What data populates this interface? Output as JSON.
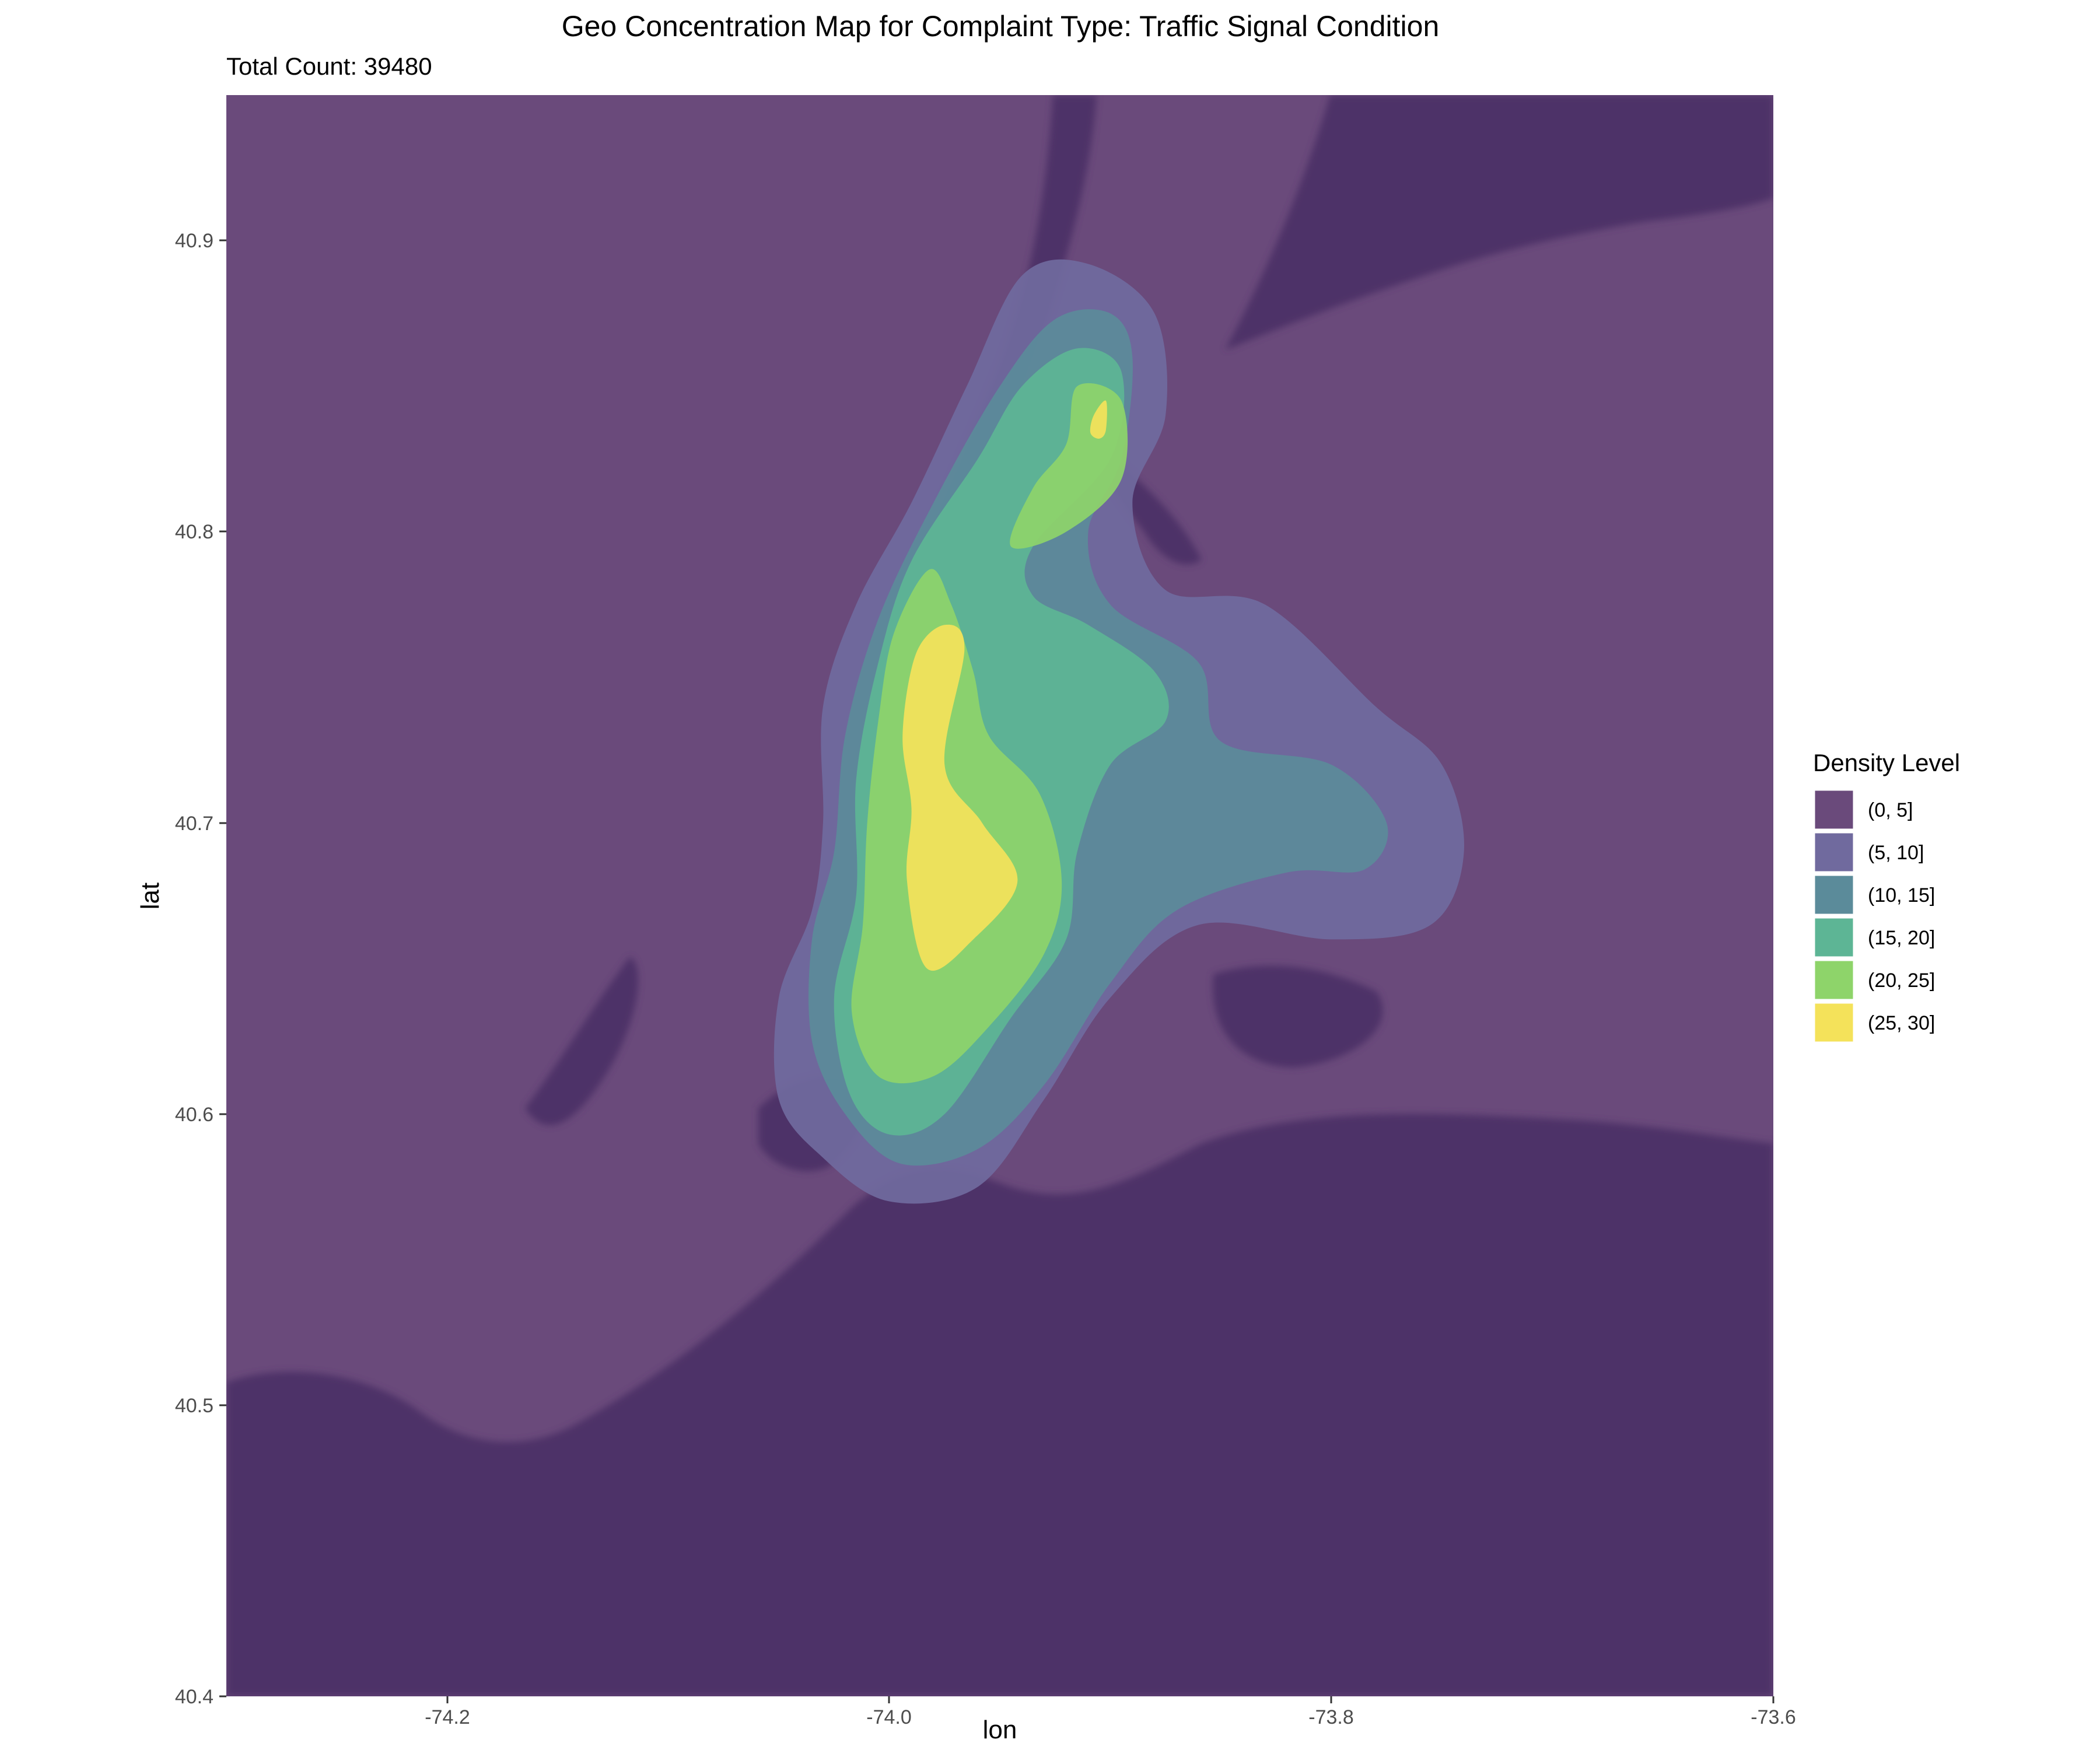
{
  "chart_data": {
    "type": "heatmap",
    "title": "Geo Concentration Map for Complaint Type: Traffic Signal Condition",
    "subtitle": "Total Count: 39480",
    "xlabel": "lon",
    "ylabel": "lat",
    "xlim": [
      -74.3,
      -73.6
    ],
    "ylim": [
      40.4,
      40.95
    ],
    "x_ticks": [
      -74.2,
      -74.0,
      -73.8,
      -73.6
    ],
    "x_tick_labels": [
      "-74.2",
      "-74.0",
      "-73.8",
      "-73.6"
    ],
    "y_ticks": [
      40.4,
      40.5,
      40.6,
      40.7,
      40.8,
      40.9
    ],
    "y_tick_labels": [
      "40.4",
      "40.5",
      "40.6",
      "40.7",
      "40.8",
      "40.9"
    ],
    "grid": false,
    "legend_position": "right",
    "legend": {
      "title": "Density Level",
      "levels": [
        {
          "label": "(0, 5]",
          "color": "#6a4a7b"
        },
        {
          "label": "(5, 10]",
          "color": "#706a9e"
        },
        {
          "label": "(10, 15]",
          "color": "#5b8b9a"
        },
        {
          "label": "(15, 20]",
          "color": "#5db595"
        },
        {
          "label": "(20, 25]",
          "color": "#8ed46a"
        },
        {
          "label": "(25, 30]",
          "color": "#f4e25a"
        }
      ]
    },
    "background_colors": {
      "land": "#6a4a7b",
      "water": "#4e3368"
    },
    "contours": [
      {
        "level": "(5, 10]",
        "points": [
          [
            -73.94,
            40.888
          ],
          [
            -73.91,
            40.892
          ],
          [
            -73.88,
            40.875
          ],
          [
            -73.875,
            40.84
          ],
          [
            -73.89,
            40.81
          ],
          [
            -73.875,
            40.78
          ],
          [
            -73.83,
            40.775
          ],
          [
            -73.78,
            40.74
          ],
          [
            -73.75,
            40.72
          ],
          [
            -73.74,
            40.69
          ],
          [
            -73.755,
            40.665
          ],
          [
            -73.8,
            40.66
          ],
          [
            -73.86,
            40.665
          ],
          [
            -73.9,
            40.64
          ],
          [
            -73.93,
            40.605
          ],
          [
            -73.96,
            40.575
          ],
          [
            -74.0,
            40.57
          ],
          [
            -74.03,
            40.585
          ],
          [
            -74.05,
            40.605
          ],
          [
            -74.05,
            40.64
          ],
          [
            -74.035,
            40.67
          ],
          [
            -74.03,
            40.7
          ],
          [
            -74.03,
            40.74
          ],
          [
            -74.015,
            40.775
          ],
          [
            -73.99,
            40.81
          ],
          [
            -73.965,
            40.85
          ]
        ]
      },
      {
        "level": "(10, 15]",
        "points": [
          [
            -73.925,
            40.873
          ],
          [
            -73.9,
            40.875
          ],
          [
            -73.89,
            40.86
          ],
          [
            -73.895,
            40.825
          ],
          [
            -73.91,
            40.8
          ],
          [
            -73.9,
            40.775
          ],
          [
            -73.86,
            40.755
          ],
          [
            -73.85,
            40.728
          ],
          [
            -73.8,
            40.72
          ],
          [
            -73.775,
            40.7
          ],
          [
            -73.785,
            40.684
          ],
          [
            -73.82,
            40.683
          ],
          [
            -73.87,
            40.67
          ],
          [
            -73.9,
            40.645
          ],
          [
            -73.93,
            40.61
          ],
          [
            -73.96,
            40.588
          ],
          [
            -73.995,
            40.583
          ],
          [
            -74.02,
            40.6
          ],
          [
            -74.035,
            40.625
          ],
          [
            -74.035,
            40.66
          ],
          [
            -74.025,
            40.69
          ],
          [
            -74.02,
            40.73
          ],
          [
            -74.005,
            40.77
          ],
          [
            -73.98,
            40.81
          ],
          [
            -73.95,
            40.85
          ]
        ]
      },
      {
        "level": "(15, 20]",
        "points": [
          [
            -73.915,
            40.863
          ],
          [
            -73.895,
            40.855
          ],
          [
            -73.9,
            40.825
          ],
          [
            -73.935,
            40.795
          ],
          [
            -73.935,
            40.778
          ],
          [
            -73.91,
            40.768
          ],
          [
            -73.88,
            40.752
          ],
          [
            -73.875,
            40.735
          ],
          [
            -73.9,
            40.72
          ],
          [
            -73.915,
            40.69
          ],
          [
            -73.92,
            40.66
          ],
          [
            -73.945,
            40.633
          ],
          [
            -73.975,
            40.6
          ],
          [
            -74.0,
            40.593
          ],
          [
            -74.018,
            40.607
          ],
          [
            -74.025,
            40.64
          ],
          [
            -74.015,
            40.675
          ],
          [
            -74.015,
            40.715
          ],
          [
            -74.005,
            40.755
          ],
          [
            -73.99,
            40.79
          ],
          [
            -73.96,
            40.825
          ],
          [
            -73.94,
            40.85
          ]
        ]
      },
      {
        "level": "(20, 25]",
        "points": [
          [
            -73.915,
            40.85
          ],
          [
            -73.895,
            40.845
          ],
          [
            -73.895,
            40.818
          ],
          [
            -73.92,
            40.8
          ],
          [
            -73.945,
            40.795
          ],
          [
            -73.935,
            40.815
          ],
          [
            -73.92,
            40.83
          ]
        ]
      },
      {
        "level": "(20, 25]",
        "points": [
          [
            -73.982,
            40.787
          ],
          [
            -73.972,
            40.775
          ],
          [
            -73.962,
            40.752
          ],
          [
            -73.955,
            40.73
          ],
          [
            -73.932,
            40.71
          ],
          [
            -73.922,
            40.68
          ],
          [
            -73.93,
            40.655
          ],
          [
            -73.955,
            40.63
          ],
          [
            -73.98,
            40.613
          ],
          [
            -74.005,
            40.613
          ],
          [
            -74.017,
            40.635
          ],
          [
            -74.012,
            40.665
          ],
          [
            -74.01,
            40.7
          ],
          [
            -74.005,
            40.735
          ],
          [
            -73.998,
            40.765
          ]
        ]
      },
      {
        "level": "(25, 30]",
        "points": [
          [
            -73.9075,
            40.84
          ],
          [
            -73.902,
            40.845
          ],
          [
            -73.902,
            40.835
          ],
          [
            -73.905,
            40.832
          ],
          [
            -73.909,
            40.834
          ]
        ]
      },
      {
        "level": "(25, 30]",
        "points": [
          [
            -73.975,
            40.768
          ],
          [
            -73.966,
            40.76
          ],
          [
            -73.975,
            40.72
          ],
          [
            -73.958,
            40.7
          ],
          [
            -73.942,
            40.68
          ],
          [
            -73.962,
            40.66
          ],
          [
            -73.983,
            40.65
          ],
          [
            -73.992,
            40.68
          ],
          [
            -73.99,
            40.705
          ],
          [
            -73.994,
            40.73
          ],
          [
            -73.988,
            40.758
          ]
        ]
      }
    ]
  }
}
